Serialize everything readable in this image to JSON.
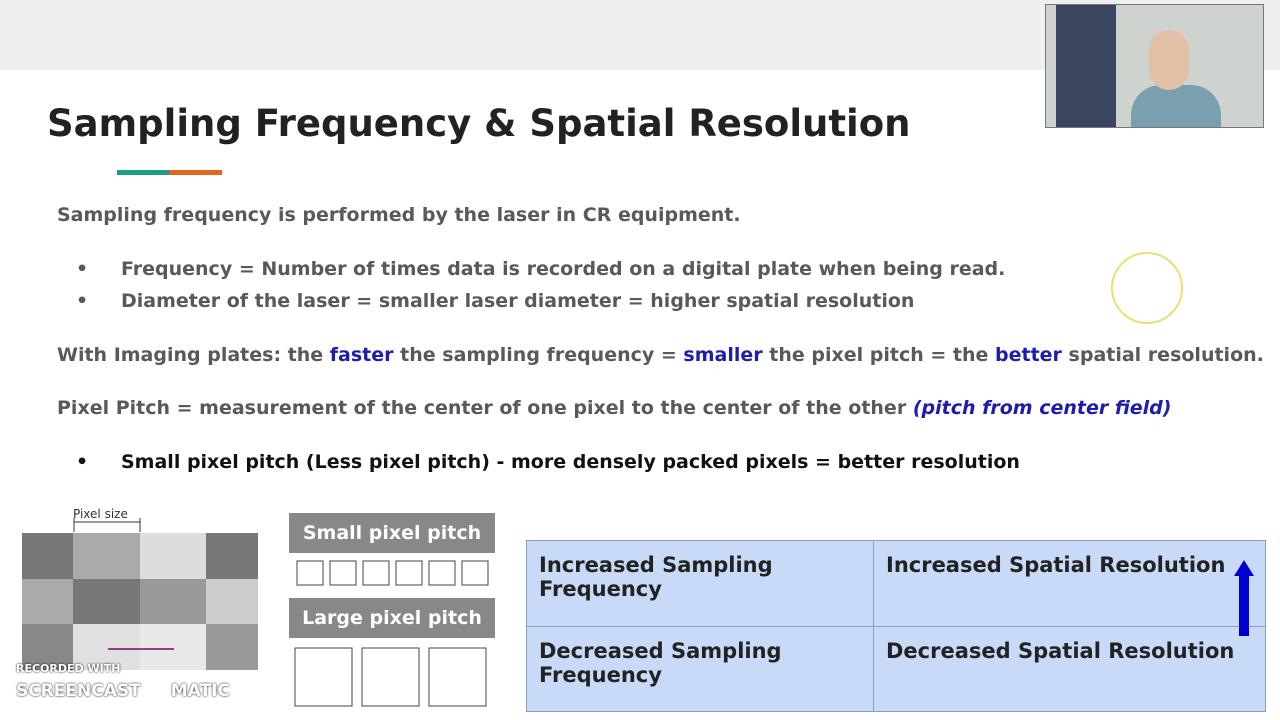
{
  "slide": {
    "title": "Sampling Frequency & Spatial Resolution",
    "intro": "Sampling frequency is performed by the laser in CR equipment.",
    "bullets": [
      "Frequency = Number of times data is recorded on a digital plate when being read.",
      "Diameter of the laser = smaller laser diameter = higher spatial resolution"
    ],
    "imaging_plates": [
      "With Imaging plates: the ",
      "faster",
      " the sampling frequency = ",
      "smaller",
      " the pixel pitch = the ",
      "better",
      " spatial resolution."
    ],
    "pixel_pitch": [
      "Pixel Pitch = measurement of the center of one pixel to the center of the other ",
      "(pitch from center field)"
    ],
    "pitch_bullet": "Small pixel pitch (Less pixel pitch) - more densely packed pixels = better resolution",
    "figure": {
      "pixel_size": "Pixel size",
      "small": "Small pixel pitch",
      "large": "Large pixel pitch"
    },
    "table": {
      "rows": [
        [
          "Increased Sampling Frequency",
          "Increased Spatial Resolution"
        ],
        [
          "Decreased Sampling Frequency",
          "Decreased Spatial Resolution"
        ]
      ]
    },
    "watermark": [
      "RECORDED WITH",
      "SCREENCAST",
      "MATIC"
    ]
  }
}
